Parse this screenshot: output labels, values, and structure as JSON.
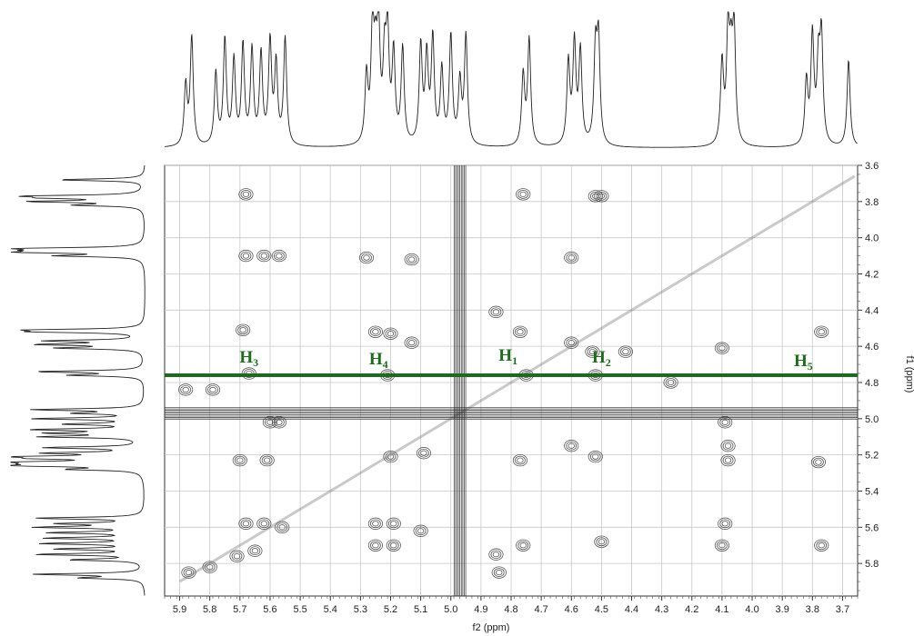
{
  "chart_data": {
    "type": "heatmap",
    "subtype": "2D NMR contour plot with projected 1D spectra",
    "xlabel": "f2 (ppm)",
    "ylabel": "f1 (ppm)",
    "xlim": [
      5.95,
      3.65
    ],
    "ylim": [
      3.6,
      5.98
    ],
    "x_ticks": [
      "5.9",
      "5.8",
      "5.7",
      "5.6",
      "5.5",
      "5.4",
      "5.3",
      "5.2",
      "5.1",
      "5.0",
      "4.9",
      "4.8",
      "4.7",
      "4.6",
      "4.5",
      "4.4",
      "4.3",
      "4.2",
      "4.1",
      "4.0",
      "3.9",
      "3.8",
      "3.7"
    ],
    "y_ticks": [
      "3.6",
      "3.8",
      "4.0",
      "4.2",
      "4.4",
      "4.6",
      "4.8",
      "5.0",
      "5.2",
      "5.4",
      "5.6",
      "5.8"
    ],
    "grid": true,
    "highlight_line": {
      "f1": 4.76,
      "color": "#1e6b1e"
    },
    "annotations": [
      {
        "base": "H",
        "sub": "3",
        "x": 5.67,
        "y": 4.69
      },
      {
        "base": "H",
        "sub": "4",
        "x": 5.24,
        "y": 4.7
      },
      {
        "base": "H",
        "sub": "1",
        "x": 4.81,
        "y": 4.68
      },
      {
        "base": "H",
        "sub": "2",
        "x": 4.5,
        "y": 4.69
      },
      {
        "base": "H",
        "sub": "5",
        "x": 3.83,
        "y": 4.71
      }
    ],
    "peaks_ppm": [
      5.88,
      5.86,
      5.78,
      5.75,
      5.72,
      5.69,
      5.66,
      5.63,
      5.6,
      5.58,
      5.55,
      5.28,
      5.26,
      5.25,
      5.24,
      5.22,
      5.21,
      5.19,
      5.16,
      5.1,
      5.08,
      5.06,
      5.03,
      5.0,
      4.97,
      4.95,
      4.76,
      4.74,
      4.61,
      4.59,
      4.57,
      4.52,
      4.51,
      4.1,
      4.08,
      4.07,
      4.06,
      3.82,
      3.8,
      3.78,
      3.77,
      3.68
    ],
    "cross_peaks": [
      {
        "x": 5.68,
        "y": 3.76
      },
      {
        "x": 5.68,
        "y": 4.1
      },
      {
        "x": 5.62,
        "y": 4.1
      },
      {
        "x": 5.57,
        "y": 4.1
      },
      {
        "x": 5.28,
        "y": 4.11
      },
      {
        "x": 5.13,
        "y": 4.12
      },
      {
        "x": 4.76,
        "y": 3.76
      },
      {
        "x": 4.52,
        "y": 3.77
      },
      {
        "x": 4.5,
        "y": 3.77
      },
      {
        "x": 4.6,
        "y": 4.11
      },
      {
        "x": 4.85,
        "y": 4.41
      },
      {
        "x": 4.77,
        "y": 4.52
      },
      {
        "x": 5.25,
        "y": 4.52
      },
      {
        "x": 5.2,
        "y": 4.53
      },
      {
        "x": 5.69,
        "y": 4.51
      },
      {
        "x": 5.13,
        "y": 4.58
      },
      {
        "x": 4.6,
        "y": 4.58
      },
      {
        "x": 4.53,
        "y": 4.63
      },
      {
        "x": 4.42,
        "y": 4.63
      },
      {
        "x": 4.1,
        "y": 4.61
      },
      {
        "x": 3.77,
        "y": 4.52
      },
      {
        "x": 5.67,
        "y": 4.75
      },
      {
        "x": 5.21,
        "y": 4.76
      },
      {
        "x": 4.75,
        "y": 4.76
      },
      {
        "x": 4.52,
        "y": 4.76
      },
      {
        "x": 4.27,
        "y": 4.8
      },
      {
        "x": 5.88,
        "y": 4.84
      },
      {
        "x": 5.79,
        "y": 4.84
      },
      {
        "x": 5.6,
        "y": 5.02
      },
      {
        "x": 5.57,
        "y": 5.02
      },
      {
        "x": 5.7,
        "y": 5.23
      },
      {
        "x": 5.61,
        "y": 5.23
      },
      {
        "x": 5.2,
        "y": 5.21
      },
      {
        "x": 5.09,
        "y": 5.19
      },
      {
        "x": 4.77,
        "y": 5.23
      },
      {
        "x": 4.6,
        "y": 5.15
      },
      {
        "x": 4.52,
        "y": 5.21
      },
      {
        "x": 4.09,
        "y": 5.02
      },
      {
        "x": 4.08,
        "y": 5.15
      },
      {
        "x": 4.08,
        "y": 5.23
      },
      {
        "x": 3.78,
        "y": 5.24
      },
      {
        "x": 5.68,
        "y": 5.58
      },
      {
        "x": 5.62,
        "y": 5.58
      },
      {
        "x": 5.56,
        "y": 5.6
      },
      {
        "x": 5.25,
        "y": 5.58
      },
      {
        "x": 5.19,
        "y": 5.58
      },
      {
        "x": 5.25,
        "y": 5.7
      },
      {
        "x": 5.19,
        "y": 5.7
      },
      {
        "x": 5.1,
        "y": 5.62
      },
      {
        "x": 4.85,
        "y": 5.75
      },
      {
        "x": 4.76,
        "y": 5.7
      },
      {
        "x": 4.5,
        "y": 5.68
      },
      {
        "x": 4.09,
        "y": 5.58
      },
      {
        "x": 4.1,
        "y": 5.7
      },
      {
        "x": 3.77,
        "y": 5.7
      },
      {
        "x": 5.87,
        "y": 5.85
      },
      {
        "x": 5.8,
        "y": 5.82
      },
      {
        "x": 5.71,
        "y": 5.76
      },
      {
        "x": 5.65,
        "y": 5.73
      },
      {
        "x": 4.84,
        "y": 5.85
      }
    ],
    "colors": {
      "line": "#222222",
      "grid": "#c8c8c8",
      "accent": "#1e6b1e"
    }
  }
}
